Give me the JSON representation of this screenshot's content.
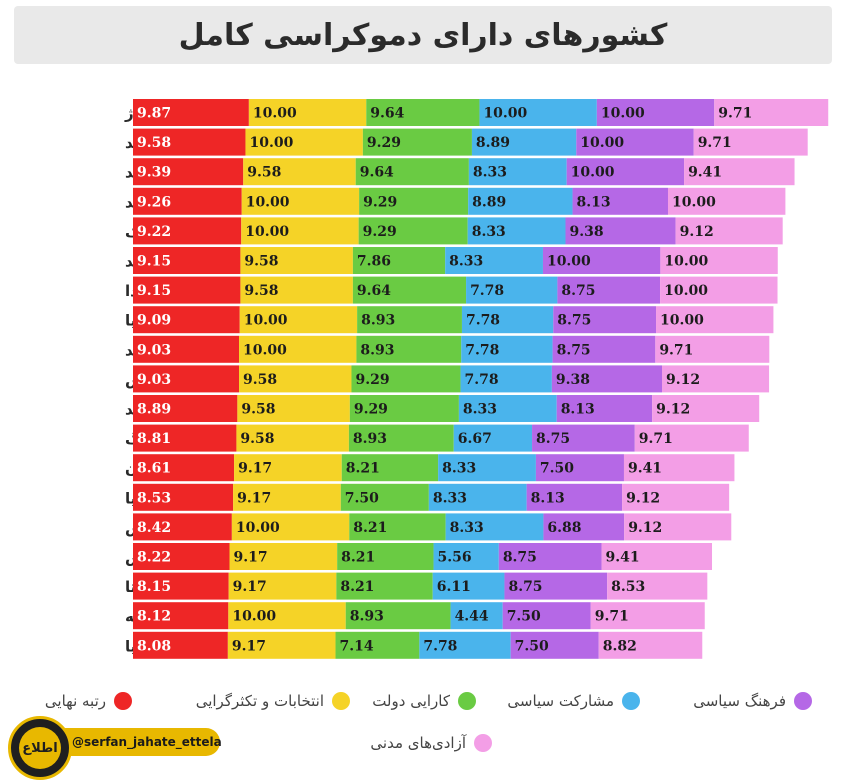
{
  "title": "کشورهای دارای دموکراسی کامل",
  "watermark": {
    "handle": "@serfan_jahate_ettela",
    "logo_text": "اطلاع"
  },
  "chart_data": {
    "type": "bar",
    "stacked": true,
    "orientation": "horizontal",
    "title": "کشورهای دارای دموکراسی کامل",
    "categories": [
      "نروژ",
      "اسلند",
      "سوئد",
      "نیوزلند",
      "دانمارک",
      "ایرلند",
      "کانادا",
      "استرالیا",
      "فنلاند",
      "سوئیس",
      "هلند",
      "لوکزامبورگ",
      "آلمان",
      "بریتانیا",
      "اتریش",
      "جزیره موریس",
      "مالتا",
      "اروگوئه",
      "اسپانیا"
    ],
    "series": [
      {
        "name": "رتبه نهایی",
        "color": "#ee2626",
        "values": [
          9.87,
          9.58,
          9.39,
          9.26,
          9.22,
          9.15,
          9.15,
          9.09,
          9.03,
          9.03,
          8.89,
          8.81,
          8.61,
          8.53,
          8.42,
          8.22,
          8.15,
          8.12,
          8.08
        ]
      },
      {
        "name": "انتخابات و تکثرگرایی",
        "color": "#f5d327",
        "values": [
          10.0,
          10.0,
          9.58,
          10.0,
          10.0,
          9.58,
          9.58,
          10.0,
          10.0,
          9.58,
          9.58,
          9.58,
          9.17,
          9.17,
          10.0,
          9.17,
          9.17,
          10.0,
          9.17
        ]
      },
      {
        "name": "کارایی دولت",
        "color": "#6acb43",
        "values": [
          9.64,
          9.29,
          9.64,
          9.29,
          9.29,
          7.86,
          9.64,
          8.93,
          8.93,
          9.29,
          9.29,
          8.93,
          8.21,
          7.5,
          8.21,
          8.21,
          8.21,
          8.93,
          7.14
        ]
      },
      {
        "name": "مشارکت سیاسی",
        "color": "#4ab4ec",
        "values": [
          10.0,
          8.89,
          8.33,
          8.89,
          8.33,
          8.33,
          7.78,
          7.78,
          7.78,
          7.78,
          8.33,
          6.67,
          8.33,
          8.33,
          8.33,
          5.56,
          6.11,
          4.44,
          7.78
        ]
      },
      {
        "name": "فرهنگ سیاسی",
        "color": "#b568e6",
        "values": [
          10.0,
          10.0,
          10.0,
          8.13,
          9.38,
          10.0,
          8.75,
          8.75,
          8.75,
          9.38,
          8.13,
          8.75,
          7.5,
          8.13,
          6.88,
          8.75,
          8.75,
          7.5,
          7.5
        ]
      },
      {
        "name": "آزادی‌های مدنی",
        "color": "#f39ee6",
        "values": [
          9.71,
          9.71,
          9.41,
          10.0,
          9.12,
          10.0,
          10.0,
          10.0,
          9.71,
          9.12,
          9.12,
          9.71,
          9.41,
          9.12,
          9.12,
          9.41,
          8.53,
          9.71,
          8.82
        ]
      }
    ],
    "legend_position": "bottom",
    "grid": false
  }
}
